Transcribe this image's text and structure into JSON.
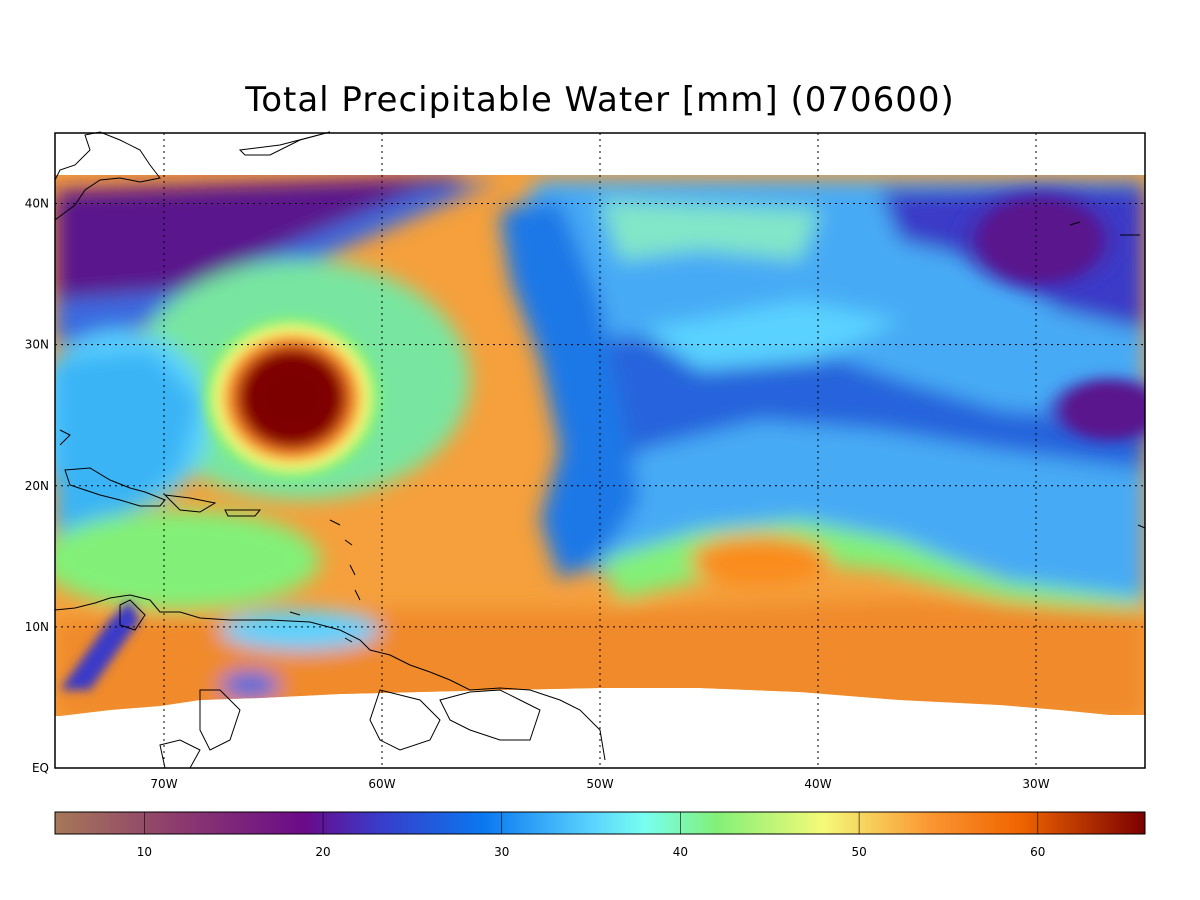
{
  "title": "Total Precipitable Water [mm]   (070600)",
  "map": {
    "lon_range": [
      -75,
      -25
    ],
    "lat_range": [
      0,
      45
    ],
    "lon_ticks": [
      {
        "value": -70,
        "label": "70W"
      },
      {
        "value": -60,
        "label": "60W"
      },
      {
        "value": -50,
        "label": "50W"
      },
      {
        "value": -40,
        "label": "40W"
      },
      {
        "value": -30,
        "label": "30W"
      }
    ],
    "lat_ticks": [
      {
        "value": 0,
        "label": "EQ"
      },
      {
        "value": 10,
        "label": "10N"
      },
      {
        "value": 20,
        "label": "20N"
      },
      {
        "value": 30,
        "label": "30N"
      },
      {
        "value": 40,
        "label": "40N"
      }
    ],
    "grid": "dotted"
  },
  "colorbar": {
    "range": [
      5,
      66
    ],
    "ticks": [
      10,
      20,
      30,
      40,
      50,
      60
    ],
    "stops": [
      {
        "value": 5,
        "color": "#a67858"
      },
      {
        "value": 12,
        "color": "#8c3a6e"
      },
      {
        "value": 19,
        "color": "#6a0a8a"
      },
      {
        "value": 23,
        "color": "#3a3ac8"
      },
      {
        "value": 29,
        "color": "#0a78f0"
      },
      {
        "value": 35,
        "color": "#5ad2ff"
      },
      {
        "value": 38,
        "color": "#78fff0"
      },
      {
        "value": 42,
        "color": "#82f078"
      },
      {
        "value": 48,
        "color": "#f5fa78"
      },
      {
        "value": 54,
        "color": "#fa9632"
      },
      {
        "value": 59,
        "color": "#f06400"
      },
      {
        "value": 66,
        "color": "#7a0000"
      }
    ]
  },
  "colors": {
    "dry_purple": "#5a148c",
    "moist_orange": "#f5a03c",
    "cyclone_core": "#7a0000",
    "land_outline": "#000000"
  }
}
